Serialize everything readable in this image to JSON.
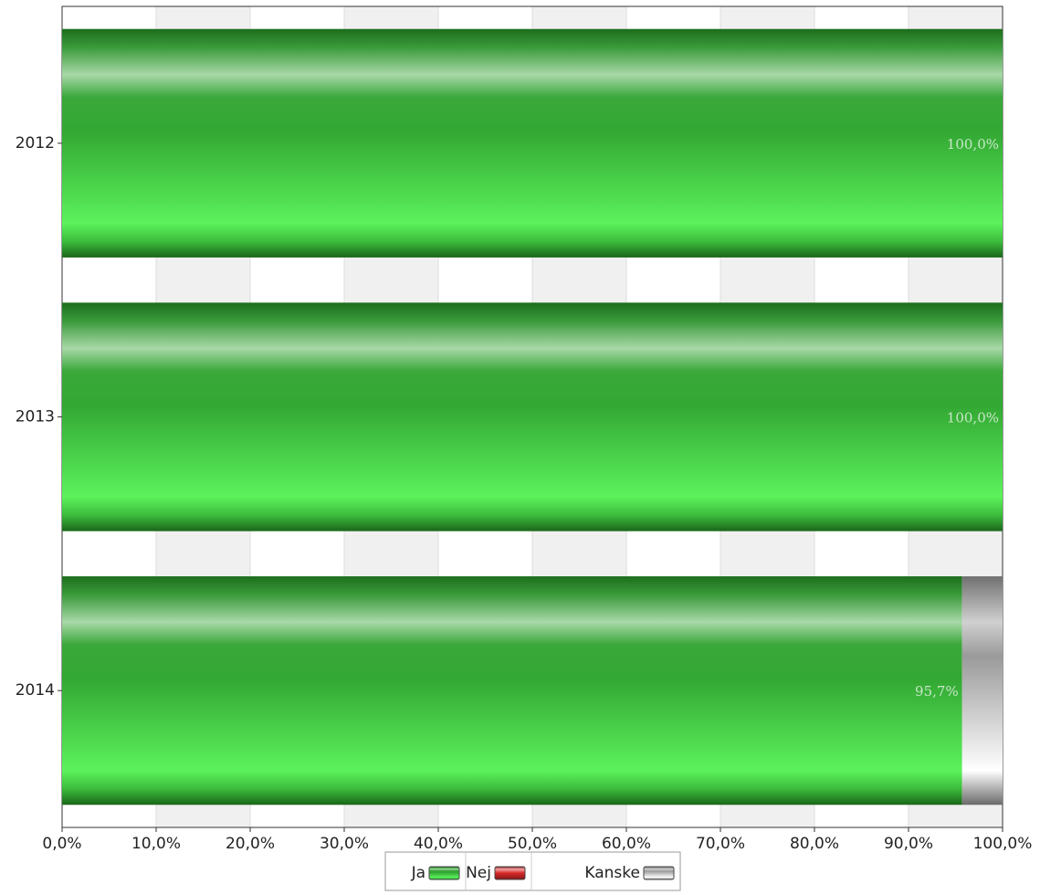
{
  "chart_data": {
    "type": "stacked-bar-horizontal",
    "categories": [
      "2012",
      "2013",
      "2014"
    ],
    "series": [
      {
        "name": "Ja",
        "color": "#33b233",
        "values": [
          100,
          100,
          95.7
        ],
        "value_labels": [
          "100,0%",
          "100,0%",
          "95,7%"
        ]
      },
      {
        "name": "Nej",
        "color": "#e03030",
        "values": [
          0,
          0,
          0
        ]
      },
      {
        "name": "Kanske",
        "color": "#b0b0b0",
        "values": [
          0,
          0,
          4.3
        ]
      }
    ],
    "xlim": [
      0,
      100
    ],
    "xticks": [
      {
        "value": 0,
        "label": "0,0%"
      },
      {
        "value": 10,
        "label": "10,0%"
      },
      {
        "value": 20,
        "label": "20,0%"
      },
      {
        "value": 30,
        "label": "30,0%"
      },
      {
        "value": 40,
        "label": "40,0%"
      },
      {
        "value": 50,
        "label": "50,0%"
      },
      {
        "value": 60,
        "label": "60,0%"
      },
      {
        "value": 70,
        "label": "70,0%"
      },
      {
        "value": 80,
        "label": "80,0%"
      },
      {
        "value": 90,
        "label": "90,0%"
      },
      {
        "value": 100,
        "label": "100,0%"
      }
    ],
    "grid": true,
    "legend": "bottom"
  }
}
